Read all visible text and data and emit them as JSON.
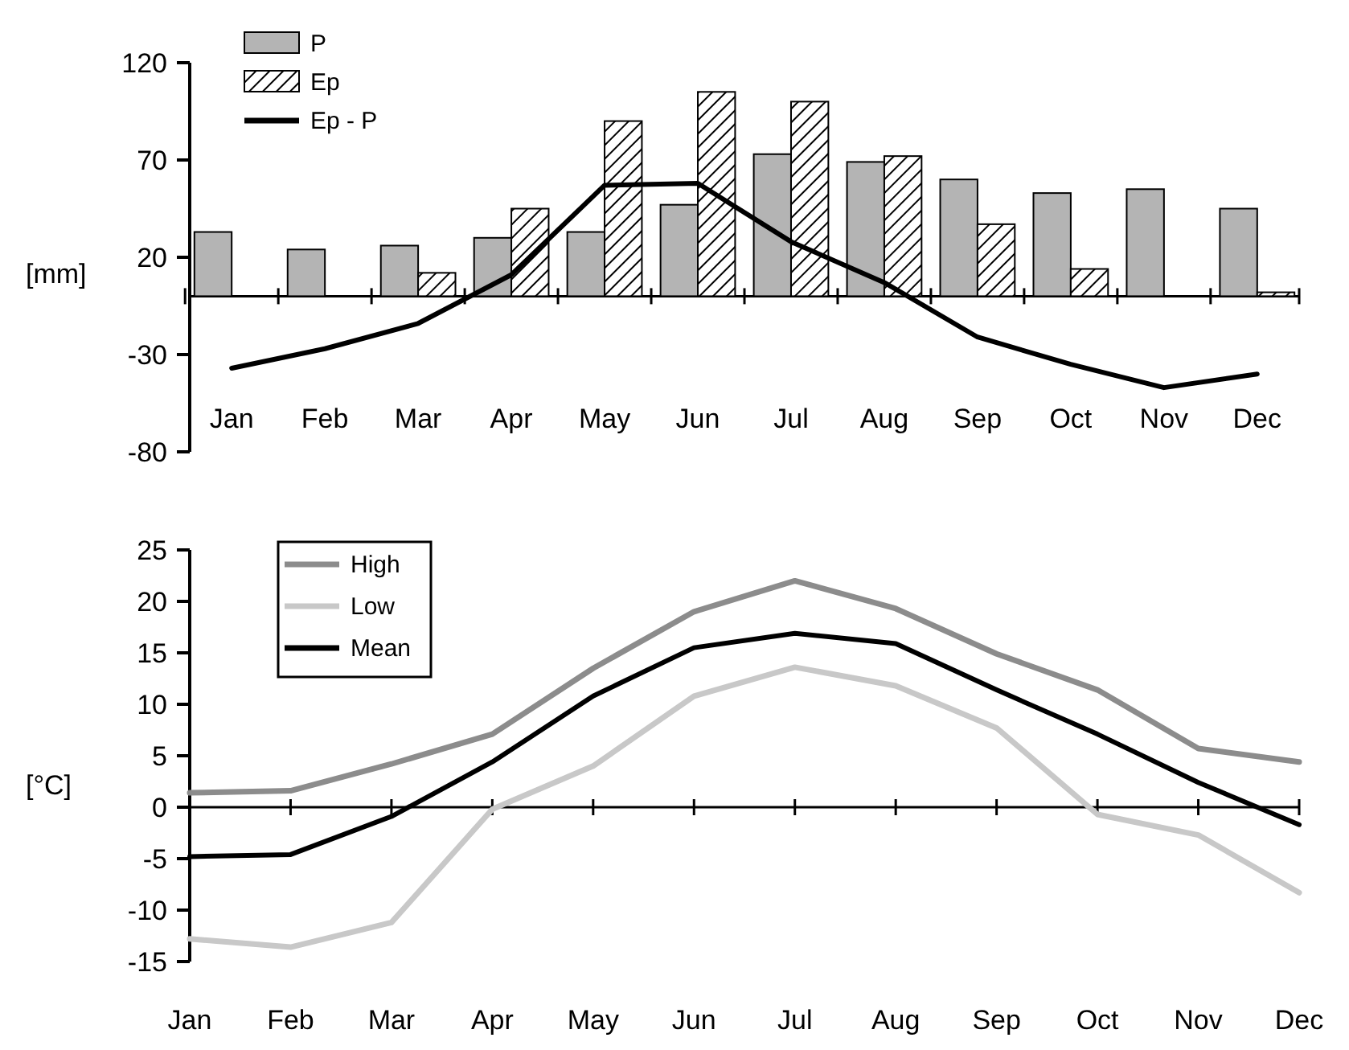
{
  "chart_data": [
    {
      "type": "bar",
      "ylabel": "[mm]",
      "categories": [
        "Jan",
        "Feb",
        "Mar",
        "Apr",
        "May",
        "Jun",
        "Jul",
        "Aug",
        "Sep",
        "Oct",
        "Nov",
        "Dec"
      ],
      "ylim": [
        -80,
        120
      ],
      "yticks": [
        -80,
        -30,
        20,
        70,
        120
      ],
      "legend": "top left",
      "series": [
        {
          "name": "P",
          "color": "#b4b4b4",
          "values": [
            33,
            24,
            26,
            30,
            33,
            47,
            73,
            69,
            60,
            53,
            55,
            45
          ]
        },
        {
          "name": "Ep",
          "color": "#000000",
          "values": [
            0,
            0,
            12,
            45,
            90,
            105,
            100,
            72,
            37,
            14,
            0,
            2
          ]
        },
        {
          "name": "Ep - P",
          "type": "line",
          "color": "#000000",
          "values": [
            -37,
            -27,
            -14,
            11,
            57,
            58,
            28,
            7,
            -21,
            -35,
            -47,
            -40
          ]
        }
      ]
    },
    {
      "type": "line",
      "ylabel": "[°C]",
      "categories": [
        "Jan",
        "Feb",
        "Mar",
        "Apr",
        "May",
        "Jun",
        "Jul",
        "Aug",
        "Sep",
        "Oct",
        "Nov",
        "Dec"
      ],
      "ylim": [
        -15,
        25
      ],
      "yticks": [
        -15,
        -10,
        -5,
        0,
        5,
        10,
        15,
        20,
        25
      ],
      "legend": "top left",
      "series": [
        {
          "name": "High",
          "color": "#8c8c8c",
          "values": [
            1.4,
            1.6,
            4.2,
            7.1,
            13.5,
            19,
            22,
            19.3,
            14.9,
            11.4,
            5.7,
            4.4
          ]
        },
        {
          "name": "Low",
          "color": "#c8c8c8",
          "values": [
            -12.8,
            -13.6,
            -11.2,
            -0.2,
            4,
            10.8,
            13.6,
            11.8,
            7.7,
            -0.7,
            -2.7,
            -8.3
          ]
        },
        {
          "name": "Mean",
          "color": "#000000",
          "values": [
            -4.8,
            -4.6,
            -0.9,
            4.4,
            10.8,
            15.5,
            16.9,
            15.9,
            11.4,
            7.1,
            2.4,
            -1.7
          ]
        }
      ]
    }
  ]
}
